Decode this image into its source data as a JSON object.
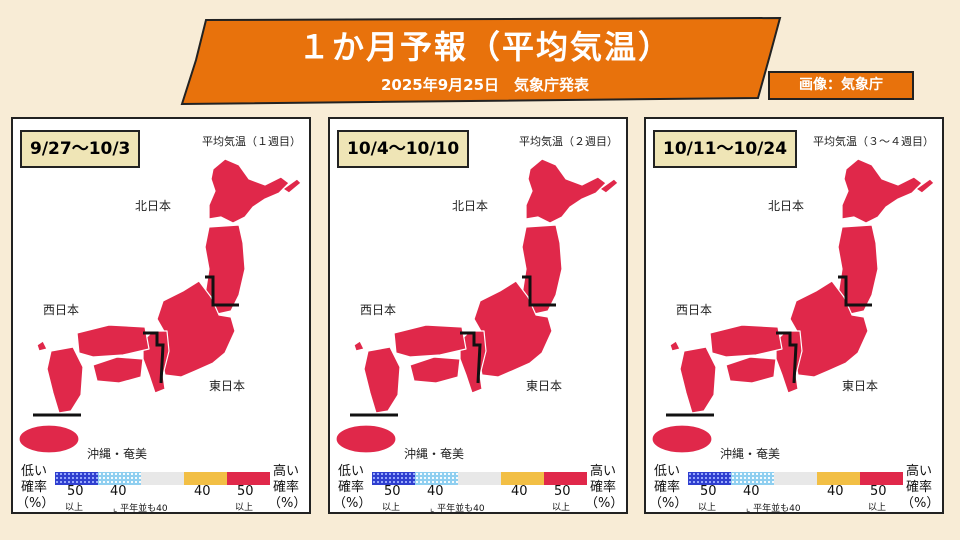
{
  "header": {
    "title": "１か月予報（平均気温）",
    "subtitle": "2025年9月25日　気象庁発表",
    "credit": "画像：気象庁"
  },
  "panels": [
    {
      "period": "9/27〜10/3",
      "week_label": "平均気温（１週目）"
    },
    {
      "period": "10/4〜10/10",
      "week_label": "平均気温（２週目）"
    },
    {
      "period": "10/11〜10/24",
      "week_label": "平均気温（３〜４週目）"
    }
  ],
  "regions": {
    "north": "北日本",
    "west": "西日本",
    "east": "東日本",
    "okinawa": "沖縄・奄美"
  },
  "forecast": {
    "north_japan": "高い確率50%以上",
    "east_japan": "高い確率50%以上",
    "west_japan": "高い確率50%以上",
    "okinawa_amami": "高い確率50%以上"
  },
  "legend": {
    "low_label": "低い確率（%）",
    "high_label": "高い確率（%）",
    "low_50": "50",
    "low_40": "40",
    "high_40": "40",
    "high_50": "50",
    "ijo": "以上",
    "normal_note": "平年並も40",
    "colors": {
      "low_strong": "#2f3fcf",
      "low": "#8fcff0",
      "normal": "#e8e8e8",
      "high": "#f2bf45",
      "high_strong": "#e0284a"
    }
  }
}
